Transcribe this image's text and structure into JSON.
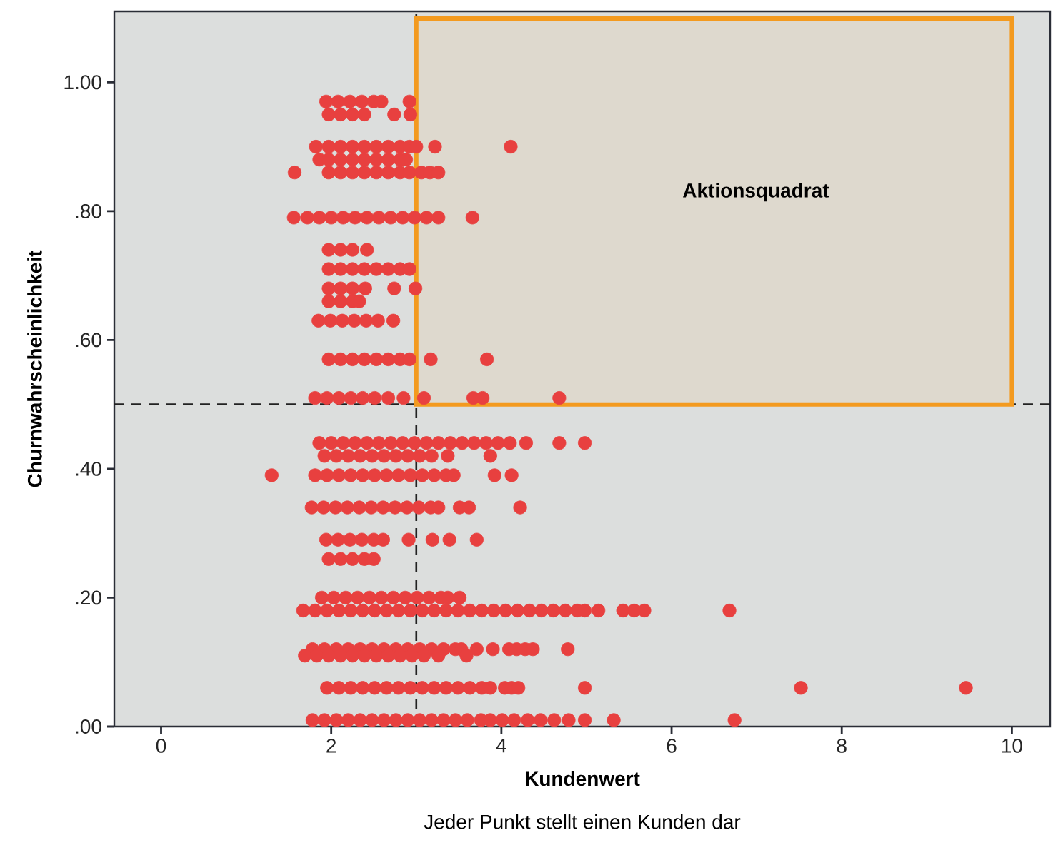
{
  "chart_data": {
    "type": "scatter",
    "xlabel": "Kundenwert",
    "ylabel": "Churnwahrscheinlichkeit",
    "annotations": [
      "Jeder Punkt stellt einen Kunden dar"
    ],
    "xlim": [
      -0.55,
      10.45
    ],
    "ylim": [
      0,
      1.11
    ],
    "xticks": [
      0,
      2,
      4,
      6,
      8,
      10
    ],
    "yticks": [
      {
        "value": 0,
        "label": ".00"
      },
      {
        "value": 0.2,
        "label": ".20"
      },
      {
        "value": 0.4,
        "label": ".40"
      },
      {
        "value": 0.6,
        "label": ".60"
      },
      {
        "value": 0.8,
        "label": ".80"
      },
      {
        "value": 1,
        "label": "1.00"
      }
    ],
    "marker": "circle",
    "grid": false,
    "ref_lines": [
      {
        "axis": "y",
        "value": 0.5,
        "color": "#222222",
        "line_style": "dashed"
      },
      {
        "axis": "x",
        "value": 3,
        "color": "#222222",
        "line_style": "dashed"
      }
    ],
    "bands": [
      {
        "axis": "x",
        "from": 3,
        "to": 10,
        "label": "Aktionsquadrat",
        "color": "#f39a1f"
      }
    ],
    "series": [
      {
        "color": "#e8403f",
        "x": [
          1.94,
          2.08,
          2.22,
          2.36,
          2.5,
          2.59,
          2.92
        ],
        "values": [
          0.97,
          0.97,
          0.97,
          0.97,
          0.97,
          0.97,
          0.97
        ]
      },
      {
        "color": "#e8403f",
        "x": [
          1.97,
          2.11,
          2.25,
          2.39,
          2.74,
          2.93
        ],
        "values": [
          0.95,
          0.95,
          0.95,
          0.95,
          0.95,
          0.95
        ]
      },
      {
        "color": "#e8403f",
        "x": [
          1.82,
          1.97,
          2.11,
          2.25,
          2.39,
          2.53,
          2.67,
          2.81,
          2.92,
          3.0,
          3.22,
          4.11
        ],
        "values": [
          0.9,
          0.9,
          0.9,
          0.9,
          0.9,
          0.9,
          0.9,
          0.9,
          0.9,
          0.9,
          0.9,
          0.9
        ]
      },
      {
        "color": "#e8403f",
        "x": [
          1.86,
          1.97,
          2.11,
          2.25,
          2.39,
          2.53,
          2.67,
          2.81,
          2.88
        ],
        "values": [
          0.88,
          0.88,
          0.88,
          0.88,
          0.88,
          0.88,
          0.88,
          0.88,
          0.88
        ]
      },
      {
        "color": "#e8403f",
        "x": [
          1.57,
          1.97,
          2.11,
          2.25,
          2.39,
          2.53,
          2.67,
          2.81,
          2.92,
          3.06,
          3.16,
          3.26
        ],
        "values": [
          0.86,
          0.86,
          0.86,
          0.86,
          0.86,
          0.86,
          0.86,
          0.86,
          0.86,
          0.86,
          0.86,
          0.86
        ]
      },
      {
        "color": "#e8403f",
        "x": [
          1.56,
          1.72,
          1.86,
          2.0,
          2.14,
          2.28,
          2.42,
          2.56,
          2.7,
          2.84,
          2.98,
          3.12,
          3.26,
          3.66
        ],
        "values": [
          0.79,
          0.79,
          0.79,
          0.79,
          0.79,
          0.79,
          0.79,
          0.79,
          0.79,
          0.79,
          0.79,
          0.79,
          0.79,
          0.79
        ]
      },
      {
        "color": "#e8403f",
        "x": [
          1.97,
          2.11,
          2.25,
          2.42
        ],
        "values": [
          0.74,
          0.74,
          0.74,
          0.74
        ]
      },
      {
        "color": "#e8403f",
        "x": [
          1.97,
          2.11,
          2.25,
          2.39,
          2.53,
          2.67,
          2.81,
          2.92
        ],
        "values": [
          0.71,
          0.71,
          0.71,
          0.71,
          0.71,
          0.71,
          0.71,
          0.71
        ]
      },
      {
        "color": "#e8403f",
        "x": [
          1.97,
          2.11,
          2.25,
          2.4,
          2.74,
          2.99
        ],
        "values": [
          0.68,
          0.68,
          0.68,
          0.68,
          0.68,
          0.68
        ]
      },
      {
        "color": "#e8403f",
        "x": [
          1.97,
          2.11,
          2.25,
          2.33
        ],
        "values": [
          0.66,
          0.66,
          0.66,
          0.66
        ]
      },
      {
        "color": "#e8403f",
        "x": [
          1.85,
          1.99,
          2.13,
          2.27,
          2.41,
          2.55,
          2.73
        ],
        "values": [
          0.63,
          0.63,
          0.63,
          0.63,
          0.63,
          0.63,
          0.63
        ]
      },
      {
        "color": "#e8403f",
        "x": [
          1.97,
          2.11,
          2.25,
          2.39,
          2.53,
          2.67,
          2.81,
          2.92,
          3.17,
          3.83
        ],
        "values": [
          0.57,
          0.57,
          0.57,
          0.57,
          0.57,
          0.57,
          0.57,
          0.57,
          0.57,
          0.57
        ]
      },
      {
        "color": "#e8403f",
        "x": [
          1.81,
          1.95,
          2.09,
          2.23,
          2.37,
          2.51,
          2.67,
          2.85,
          3.09,
          3.67,
          3.78,
          4.68
        ],
        "values": [
          0.51,
          0.51,
          0.51,
          0.51,
          0.51,
          0.51,
          0.51,
          0.51,
          0.51,
          0.51,
          0.51,
          0.51
        ]
      },
      {
        "color": "#e8403f",
        "x": [
          1.86,
          2.0,
          2.14,
          2.28,
          2.42,
          2.56,
          2.7,
          2.84,
          2.98,
          3.12,
          3.26,
          3.4,
          3.54,
          3.68,
          3.82,
          3.96,
          4.1,
          4.29,
          4.68,
          4.98
        ],
        "values": [
          0.44,
          0.44,
          0.44,
          0.44,
          0.44,
          0.44,
          0.44,
          0.44,
          0.44,
          0.44,
          0.44,
          0.44,
          0.44,
          0.44,
          0.44,
          0.44,
          0.44,
          0.44,
          0.44,
          0.44
        ]
      },
      {
        "color": "#e8403f",
        "x": [
          1.92,
          2.06,
          2.2,
          2.34,
          2.48,
          2.62,
          2.76,
          2.9,
          3.04,
          3.18,
          3.37,
          3.87
        ],
        "values": [
          0.42,
          0.42,
          0.42,
          0.42,
          0.42,
          0.42,
          0.42,
          0.42,
          0.42,
          0.42,
          0.42,
          0.42
        ]
      },
      {
        "color": "#e8403f",
        "x": [
          1.3,
          1.81,
          1.95,
          2.09,
          2.23,
          2.37,
          2.51,
          2.65,
          2.79,
          2.93,
          3.07,
          3.21,
          3.35,
          3.44,
          3.92,
          4.12
        ],
        "values": [
          0.39,
          0.39,
          0.39,
          0.39,
          0.39,
          0.39,
          0.39,
          0.39,
          0.39,
          0.39,
          0.39,
          0.39,
          0.39,
          0.39,
          0.39,
          0.39
        ]
      },
      {
        "color": "#e8403f",
        "x": [
          1.77,
          1.91,
          2.05,
          2.19,
          2.33,
          2.47,
          2.61,
          2.75,
          2.89,
          3.03,
          3.17,
          3.26,
          3.51,
          3.62,
          4.22
        ],
        "values": [
          0.34,
          0.34,
          0.34,
          0.34,
          0.34,
          0.34,
          0.34,
          0.34,
          0.34,
          0.34,
          0.34,
          0.34,
          0.34,
          0.34,
          0.34
        ]
      },
      {
        "color": "#e8403f",
        "x": [
          1.94,
          2.08,
          2.22,
          2.36,
          2.5,
          2.61,
          2.91,
          3.19,
          3.39,
          3.71
        ],
        "values": [
          0.29,
          0.29,
          0.29,
          0.29,
          0.29,
          0.29,
          0.29,
          0.29,
          0.29,
          0.29
        ]
      },
      {
        "color": "#e8403f",
        "x": [
          1.97,
          2.11,
          2.25,
          2.39,
          2.5
        ],
        "values": [
          0.26,
          0.26,
          0.26,
          0.26,
          0.26
        ]
      },
      {
        "color": "#e8403f",
        "x": [
          1.89,
          2.03,
          2.17,
          2.31,
          2.45,
          2.59,
          2.73,
          2.87,
          3.01,
          3.15,
          3.29,
          3.37,
          3.51
        ],
        "values": [
          0.2,
          0.2,
          0.2,
          0.2,
          0.2,
          0.2,
          0.2,
          0.2,
          0.2,
          0.2,
          0.2,
          0.2,
          0.2
        ]
      },
      {
        "color": "#e8403f",
        "x": [
          1.67,
          1.81,
          1.95,
          2.09,
          2.23,
          2.37,
          2.51,
          2.65,
          2.79,
          2.93,
          3.07,
          3.21,
          3.35,
          3.49,
          3.63,
          3.77,
          3.91,
          4.05,
          4.19,
          4.33,
          4.47,
          4.61,
          4.75,
          4.89,
          4.98,
          5.14,
          5.43,
          5.56,
          5.68,
          6.68
        ],
        "values": [
          0.18,
          0.18,
          0.18,
          0.18,
          0.18,
          0.18,
          0.18,
          0.18,
          0.18,
          0.18,
          0.18,
          0.18,
          0.18,
          0.18,
          0.18,
          0.18,
          0.18,
          0.18,
          0.18,
          0.18,
          0.18,
          0.18,
          0.18,
          0.18,
          0.18,
          0.18,
          0.18,
          0.18,
          0.18,
          0.18
        ]
      },
      {
        "color": "#e8403f",
        "x": [
          1.78,
          1.92,
          2.06,
          2.2,
          2.34,
          2.48,
          2.62,
          2.76,
          2.9,
          3.04,
          3.18,
          3.32,
          3.46,
          3.53,
          3.71,
          3.9,
          4.09,
          4.18,
          4.28,
          4.37,
          4.78
        ],
        "values": [
          0.12,
          0.12,
          0.12,
          0.12,
          0.12,
          0.12,
          0.12,
          0.12,
          0.12,
          0.12,
          0.12,
          0.12,
          0.12,
          0.12,
          0.12,
          0.12,
          0.12,
          0.12,
          0.12,
          0.12,
          0.12
        ]
      },
      {
        "color": "#e8403f",
        "x": [
          1.69,
          1.83,
          1.97,
          2.11,
          2.25,
          2.39,
          2.53,
          2.67,
          2.81,
          2.95,
          3.09,
          3.26,
          3.59
        ],
        "values": [
          0.11,
          0.11,
          0.11,
          0.11,
          0.11,
          0.11,
          0.11,
          0.11,
          0.11,
          0.11,
          0.11,
          0.11,
          0.11
        ]
      },
      {
        "color": "#e8403f",
        "x": [
          1.95,
          2.09,
          2.23,
          2.37,
          2.51,
          2.65,
          2.79,
          2.93,
          3.07,
          3.21,
          3.35,
          3.49,
          3.63,
          3.77,
          3.87,
          4.04,
          4.12,
          4.2,
          4.98,
          7.52,
          9.46
        ],
        "values": [
          0.06,
          0.06,
          0.06,
          0.06,
          0.06,
          0.06,
          0.06,
          0.06,
          0.06,
          0.06,
          0.06,
          0.06,
          0.06,
          0.06,
          0.06,
          0.06,
          0.06,
          0.06,
          0.06,
          0.06,
          0.06
        ]
      },
      {
        "color": "#e8403f",
        "x": [
          1.78,
          1.92,
          2.06,
          2.2,
          2.34,
          2.48,
          2.62,
          2.76,
          2.9,
          3.04,
          3.18,
          3.32,
          3.46,
          3.6,
          3.76,
          3.87,
          4.01,
          4.15,
          4.31,
          4.46,
          4.62,
          4.79,
          4.98,
          5.32,
          6.74
        ],
        "values": [
          0.01,
          0.01,
          0.01,
          0.01,
          0.01,
          0.01,
          0.01,
          0.01,
          0.01,
          0.01,
          0.01,
          0.01,
          0.01,
          0.01,
          0.01,
          0.01,
          0.01,
          0.01,
          0.01,
          0.01,
          0.01,
          0.01,
          0.01,
          0.01,
          0.01
        ]
      }
    ]
  }
}
